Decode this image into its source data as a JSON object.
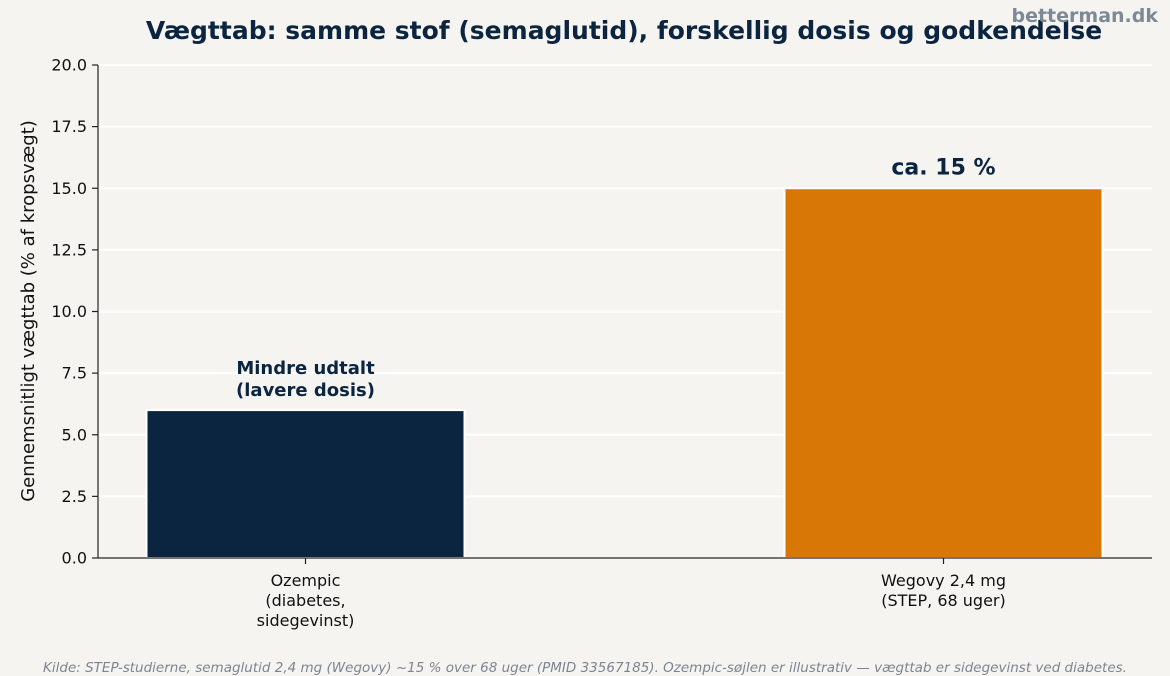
{
  "brand": "betterman.dk",
  "source_note": "Kilde: STEP-studierne, semaglutid 2,4 mg (Wegovy) ~15 % over 68 uger (PMID 33567185). Ozempic-søjlen er illustrativ — vægttab er sidegevinst ved diabetes.",
  "chart_data": {
    "type": "bar",
    "title": "Vægttab: samme stof (semaglutid), forskellig dosis og godkendelse",
    "xlabel": "",
    "ylabel": "Gennemsnitligt vægttab (% af kropsvægt)",
    "ylim": [
      0,
      20
    ],
    "yticks": [
      0,
      2.5,
      5,
      7.5,
      10,
      12.5,
      15,
      17.5,
      20
    ],
    "grid": true,
    "categories": [
      [
        "Ozempic",
        "(diabetes,",
        "sidegevinst)"
      ],
      [
        "Wegovy 2,4 mg",
        "(STEP, 68 uger)"
      ]
    ],
    "values": [
      6,
      15
    ],
    "colors": [
      "#0b2540",
      "#d97706"
    ],
    "data_labels": [
      [
        "Mindre udtalt",
        "(lavere dosis)"
      ],
      [
        "ca. 15 %"
      ]
    ]
  }
}
